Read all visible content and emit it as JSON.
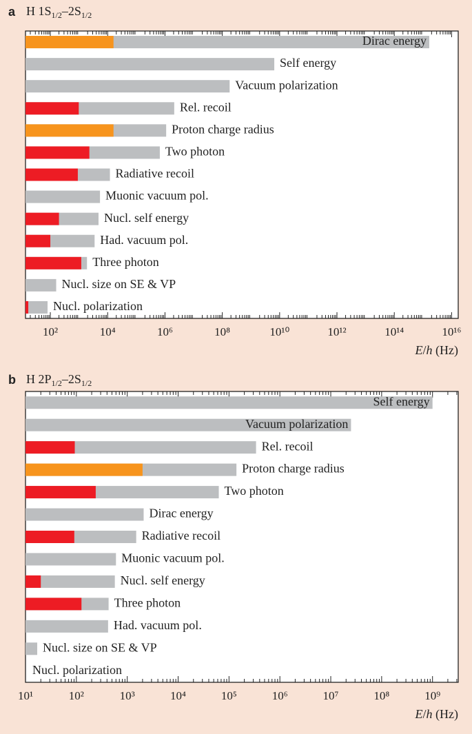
{
  "chart_data": [
    {
      "type": "bar",
      "label": "a",
      "title": "H 1S1/2–2S1/2",
      "x_label": "E/h (Hz)",
      "log_scale": true,
      "xlim": [
        13.6,
        1.7e+16
      ],
      "xticks": [
        {
          "value": 100,
          "label": "10²"
        },
        {
          "value": 10000,
          "label": "10⁴"
        },
        {
          "value": 1000000,
          "label": "10⁶"
        },
        {
          "value": 100000000,
          "label": "10⁸"
        },
        {
          "value": 10000000000,
          "label": "10¹⁰"
        },
        {
          "value": 1000000000000,
          "label": "10¹²"
        },
        {
          "value": 100000000000000,
          "label": "10¹⁴"
        },
        {
          "value": 10000000000000000,
          "label": "10¹⁶"
        }
      ],
      "color": "#bcbec0",
      "categories": [
        "Dirac energy",
        "Self energy",
        "Vacuum polarization",
        "Rel. recoil",
        "Proton charge radius",
        "Two photon",
        "Radiative recoil",
        "Muonic vacuum pol.",
        "Nucl. self energy",
        "Had. vacuum pol.",
        "Three photon",
        "Nucl. size on SE & VP",
        "Nucl. polarization"
      ],
      "values": [
        1660000000000000.0,
        6500000000.0,
        180000000.0,
        2100000.0,
        1100000.0,
        660000.0,
        12000,
        5400,
        4800,
        3500,
        1900,
        160,
        80
      ],
      "uncertainty": [
        16000,
        null,
        null,
        980,
        16000,
        2300,
        910,
        null,
        200,
        100,
        1200,
        null,
        17
      ],
      "uncertainty_colors": [
        "#f7941d",
        null,
        null,
        "#ed1c24",
        "#f7941d",
        "#ed1c24",
        "#ed1c24",
        null,
        "#ed1c24",
        "#ed1c24",
        "#ed1c24",
        null,
        "#ed1c24"
      ]
    },
    {
      "type": "bar",
      "label": "b",
      "title": "H 2P1/2–2S1/2",
      "x_label": "E/h (Hz)",
      "log_scale": true,
      "xlim": [
        10,
        3200000000.0
      ],
      "xticks": [
        {
          "value": 10,
          "label": "10¹"
        },
        {
          "value": 100,
          "label": "10²"
        },
        {
          "value": 1000,
          "label": "10³"
        },
        {
          "value": 10000,
          "label": "10⁴"
        },
        {
          "value": 100000,
          "label": "10⁵"
        },
        {
          "value": 1000000,
          "label": "10⁶"
        },
        {
          "value": 10000000,
          "label": "10⁷"
        },
        {
          "value": 100000000,
          "label": "10⁸"
        },
        {
          "value": 1000000000,
          "label": "10⁹"
        }
      ],
      "color": "#bcbec0",
      "categories": [
        "Self energy",
        "Vacuum polarization",
        "Rel. recoil",
        "Proton charge radius",
        "Two photon",
        "Dirac energy",
        "Radiative recoil",
        "Muonic vacuum pol.",
        "Nucl. self energy",
        "Three photon",
        "Had. vacuum pol.",
        "Nucl. size on SE & VP",
        "Nucl. polarization"
      ],
      "values": [
        1000000000.0,
        25000000.0,
        340000,
        140000,
        63000,
        2100,
        1500,
        600,
        570,
        430,
        420,
        17,
        null
      ],
      "uncertainty": [
        null,
        null,
        93,
        2000,
        240,
        null,
        91,
        null,
        20,
        126,
        null,
        null,
        null
      ],
      "uncertainty_colors": [
        null,
        null,
        "#ed1c24",
        "#f7941d",
        "#ed1c24",
        null,
        "#ed1c24",
        null,
        "#ed1c24",
        "#ed1c24",
        null,
        null,
        null
      ]
    }
  ]
}
